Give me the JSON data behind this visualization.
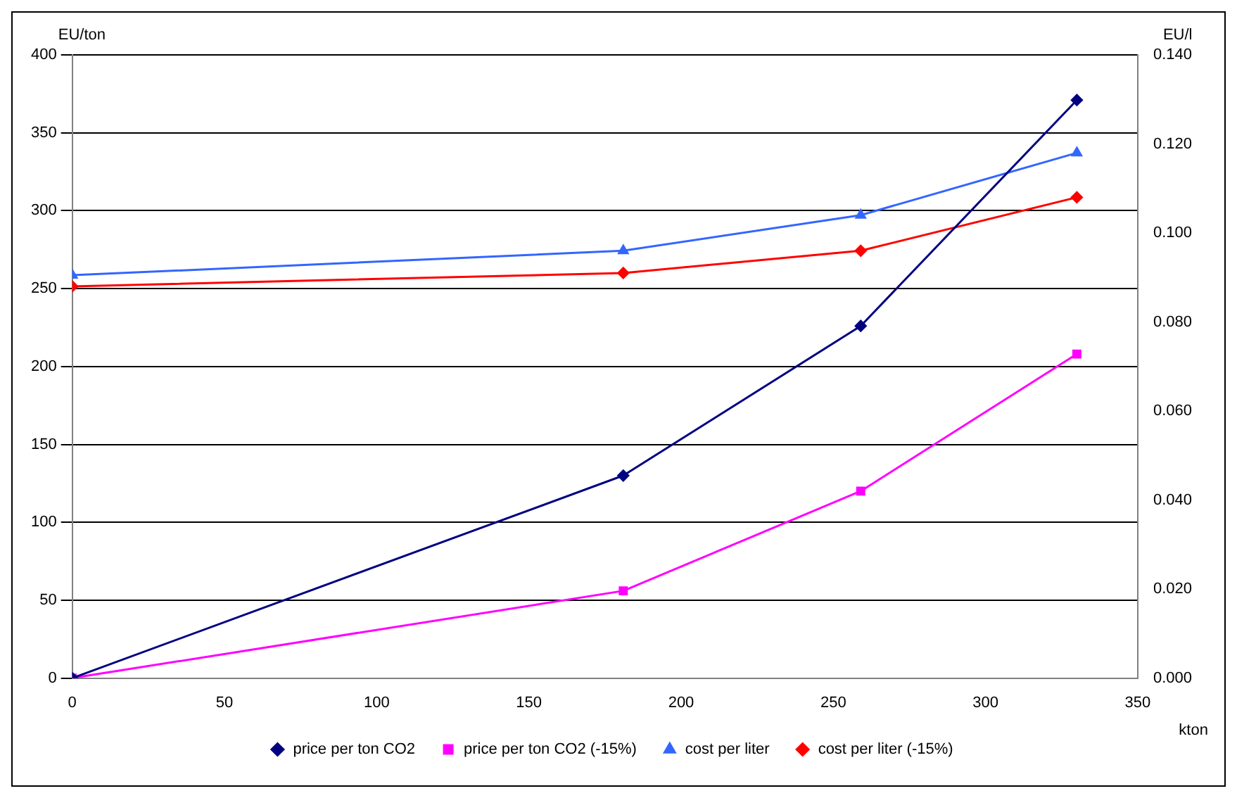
{
  "chart_data": {
    "type": "line",
    "xlabel": "kton",
    "ylabel": "EU/ton",
    "y2label": "EU/l",
    "x": [
      0,
      181,
      259,
      330
    ],
    "series": [
      {
        "name": "price per ton CO2",
        "color": "#000080",
        "values": [
          0,
          130,
          226,
          371
        ],
        "marker": "diamond"
      },
      {
        "name": "price per ton CO2 (-15%)",
        "color": "#ff00ff",
        "values": [
          0,
          56,
          120,
          208
        ],
        "marker": "square"
      },
      {
        "name": "cost per liter",
        "color": "#3366ff",
        "values": [
          0.0905,
          0.096,
          0.104,
          0.118
        ],
        "axis": "y2",
        "marker": "triangle"
      },
      {
        "name": "cost per liter (-15%)",
        "color": "#ff0000",
        "values": [
          0.088,
          0.091,
          0.096,
          0.108
        ],
        "axis": "y2",
        "marker": "diamond"
      }
    ],
    "xlim": [
      0,
      350
    ],
    "xticks": [
      0,
      50,
      100,
      150,
      200,
      250,
      300,
      350
    ],
    "ylim": [
      0,
      400
    ],
    "yticks": [
      0,
      50,
      100,
      150,
      200,
      250,
      300,
      350,
      400
    ],
    "y2lim": [
      0,
      0.14
    ],
    "y2ticks": [
      {
        "value": 0,
        "label": "0.000"
      },
      {
        "value": 0.02,
        "label": "0.020"
      },
      {
        "value": 0.04,
        "label": "0.040"
      },
      {
        "value": 0.06,
        "label": "0.060"
      },
      {
        "value": 0.08,
        "label": "0.080"
      },
      {
        "value": 0.1,
        "label": "0.100"
      },
      {
        "value": 0.12,
        "label": "0.120"
      },
      {
        "value": 0.14,
        "label": "0.140"
      }
    ],
    "grid": "y",
    "legend": "bottom",
    "line_style": "solid"
  }
}
